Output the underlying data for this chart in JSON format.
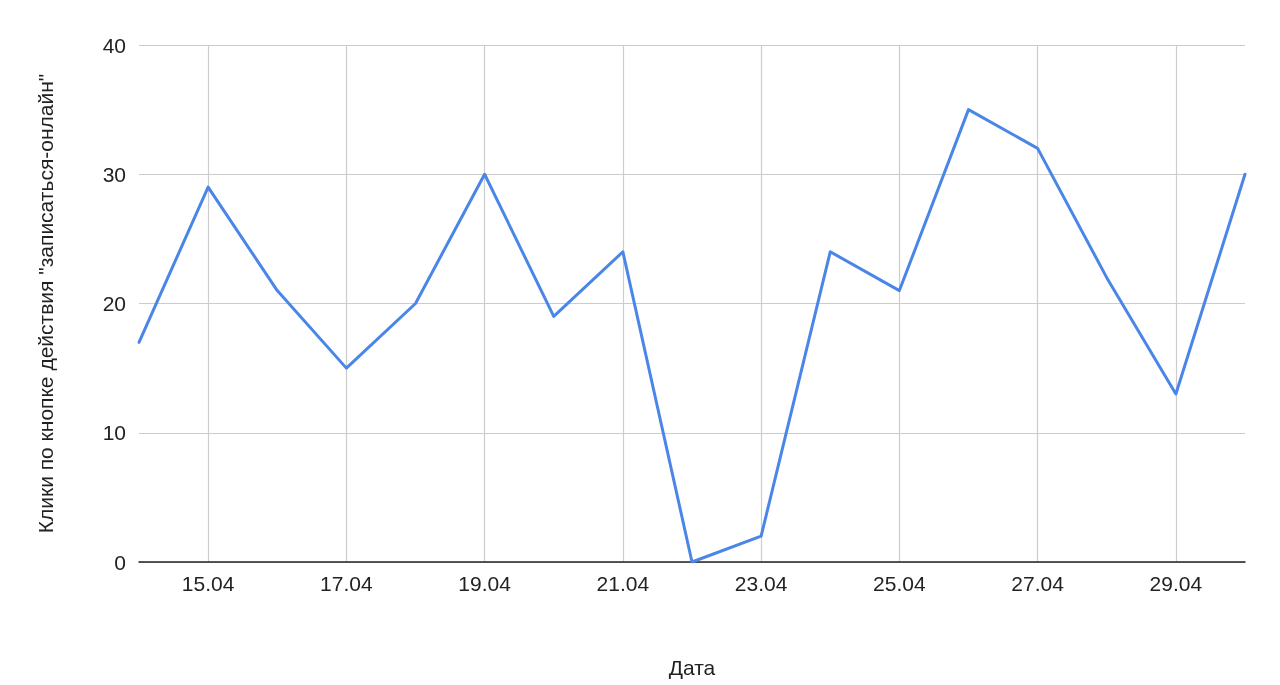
{
  "chart_data": {
    "type": "line",
    "xlabel": "Дата",
    "ylabel": "Клики по кнопке действия \"записаться-онлайн\"",
    "x": [
      "--04-14",
      "--04-15",
      "--04-16",
      "--04-17",
      "--04-18",
      "--04-19",
      "--04-20",
      "--04-21",
      "--04-22",
      "--04-23",
      "--04-24",
      "--04-25",
      "--04-26",
      "--04-27",
      "--04-28",
      "--04-29",
      "--04-30"
    ],
    "series": [
      {
        "color": "#4a86e8",
        "values": [
          17,
          29,
          21,
          15,
          20,
          30,
          19,
          24,
          0,
          2,
          24,
          21,
          35,
          32,
          22,
          13,
          30
        ]
      }
    ],
    "xlim": [
      "--04-14",
      "--04-30"
    ],
    "xticks": [
      {
        "value": "--04-15",
        "label": "15.04"
      },
      {
        "value": "--04-17",
        "label": "17.04"
      },
      {
        "value": "--04-19",
        "label": "19.04"
      },
      {
        "value": "--04-21",
        "label": "21.04"
      },
      {
        "value": "--04-23",
        "label": "23.04"
      },
      {
        "value": "--04-25",
        "label": "25.04"
      },
      {
        "value": "--04-27",
        "label": "27.04"
      },
      {
        "value": "--04-29",
        "label": "29.04"
      }
    ],
    "ylim": [
      0,
      40
    ],
    "yticks": [
      0,
      10,
      20,
      30,
      40
    ],
    "grid": true,
    "marker": "none",
    "line_style": "solid"
  }
}
